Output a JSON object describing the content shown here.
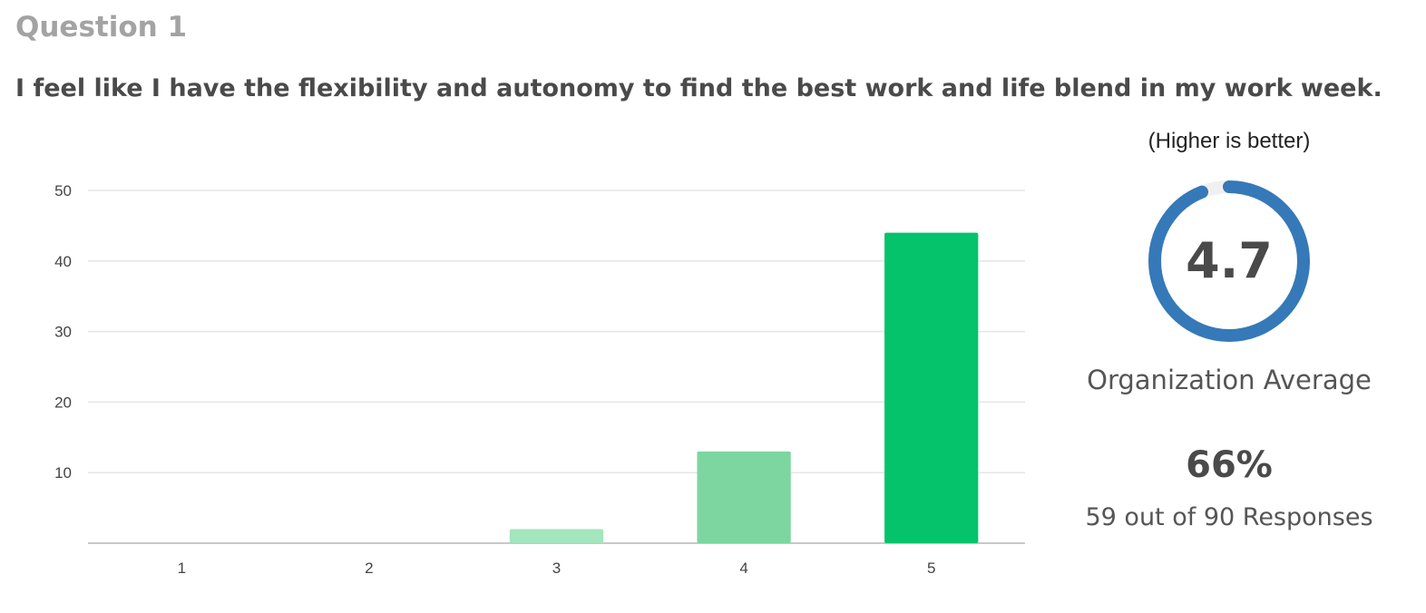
{
  "question": {
    "label": "Question 1",
    "text": "I feel like I have the flexibility and autonomy to find the best work and life blend in my work week."
  },
  "summary": {
    "hint": "(Higher is better)",
    "average": "4.7",
    "average_value": 4.7,
    "average_max": 5,
    "average_label": "Organization Average",
    "percent": "66%",
    "responses": "59 out of 90 Responses",
    "ring_color": "#3579b8",
    "ring_track_color": "#f0f0f0"
  },
  "chart_data": {
    "type": "bar",
    "categories": [
      "1",
      "2",
      "3",
      "4",
      "5"
    ],
    "values": [
      0,
      0,
      2,
      13,
      44
    ],
    "colors": [
      "#dff5e8",
      "#c4efd6",
      "#a3e5bd",
      "#7dd69f",
      "#04c36b"
    ],
    "yticks": [
      "10",
      "20",
      "30",
      "40",
      "50"
    ],
    "ylim": [
      0,
      50
    ],
    "grid": true,
    "title": "",
    "xlabel": "",
    "ylabel": ""
  }
}
